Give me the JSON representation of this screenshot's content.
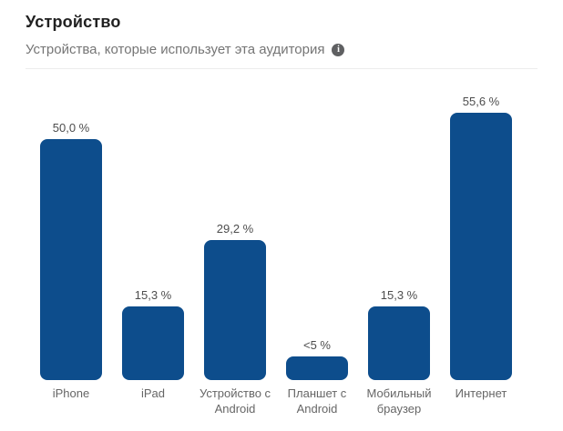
{
  "header": {
    "title": "Устройство",
    "subtitle": "Устройства, которые использует эта аудитория"
  },
  "colors": {
    "bar": "#0d4d8c",
    "title_text": "#212121",
    "subtitle_text": "#757575",
    "value_label_text": "#4d4d4d",
    "category_label_text": "#666666",
    "divider": "#ececec",
    "background": "#ffffff",
    "info_icon_bg": "#5f6062"
  },
  "chart_data": {
    "type": "bar",
    "title": "Устройство",
    "subtitle": "Устройства, которые использует эта аудитория",
    "categories": [
      "iPhone",
      "iPad",
      "Устройство с Android",
      "Планшет с Android",
      "Мобильный браузер",
      "Интернет"
    ],
    "values": [
      50.0,
      15.3,
      29.2,
      4.9,
      15.3,
      55.6
    ],
    "value_labels": [
      "50,0 %",
      "15,3 %",
      "29,2 %",
      "<5 %",
      "15,3 %",
      "55,6 %"
    ],
    "xlabel": "",
    "ylabel": "",
    "unit": "%",
    "ylim": [
      0,
      62
    ],
    "grid": false,
    "legend": false,
    "bar_color": "#0d4d8c"
  }
}
